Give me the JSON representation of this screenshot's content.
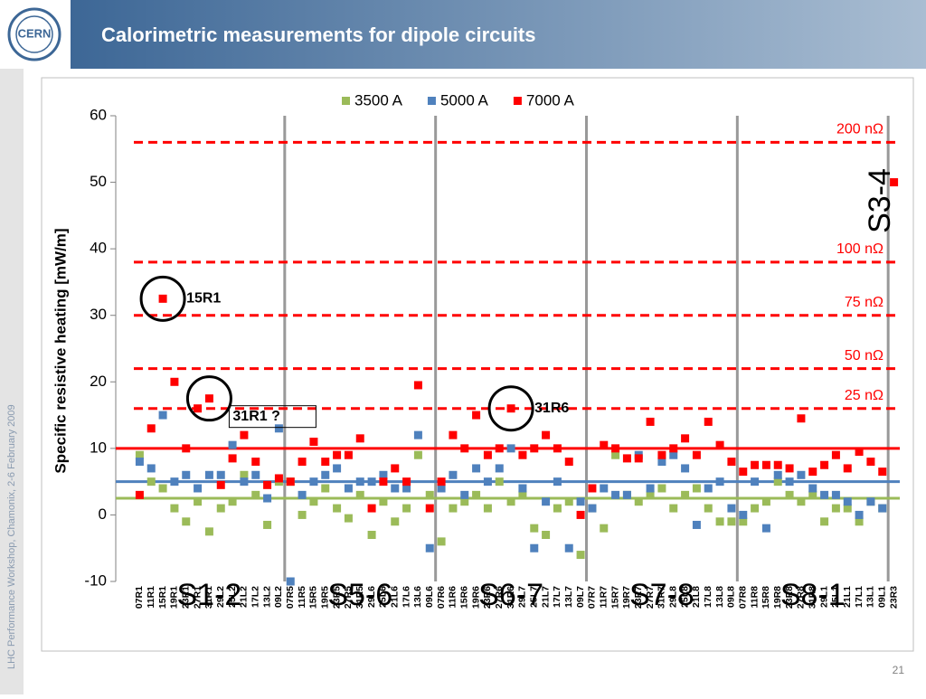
{
  "header": {
    "logo": "CERN",
    "title": "Calorimetric measurements for dipole circuits"
  },
  "sidebar": "LHC Performance Workshop, Chamonix, 2-6 February 2009",
  "page_number": "21",
  "chart_data": {
    "type": "scatter",
    "y_label": "Specific resistive heating [mW/m]",
    "ylim": [
      -10,
      60
    ],
    "yticks": [
      -10,
      0,
      10,
      20,
      30,
      40,
      50,
      60
    ],
    "categories": [
      "07R1",
      "11R1",
      "15R1",
      "19R1",
      "23R1",
      "27R1",
      "31R1",
      "29L2",
      "25L2",
      "21L2",
      "17L2",
      "13L2",
      "09L2",
      "07R5",
      "11R5",
      "15R5",
      "19R5",
      "23R5",
      "27R5",
      "31R5",
      "29L6",
      "25L6",
      "21L6",
      "17L6",
      "13L6",
      "09L6",
      "07R6",
      "11R6",
      "15R6",
      "19R6",
      "23R6",
      "27R6",
      "31R6",
      "29L7",
      "25L7",
      "21L7",
      "17L7",
      "13L7",
      "09L7",
      "07R7",
      "11R7",
      "15R7",
      "19R7",
      "23R7",
      "27R7",
      "31R7",
      "29L8",
      "25L8",
      "21L8",
      "17L8",
      "13L8",
      "09L8",
      "07R8",
      "11R8",
      "15R8",
      "19R8",
      "23R8",
      "27R8",
      "31R8",
      "29L1",
      "25L1",
      "21L1",
      "17L1",
      "13L1",
      "09L1",
      "23R3"
    ],
    "series": [
      {
        "name": "3500 A",
        "color": "#9bbb59",
        "values": [
          9,
          5,
          4,
          1,
          -1,
          2,
          -2.5,
          1,
          2,
          6,
          3,
          -1.5,
          5,
          5,
          0,
          2,
          4,
          1,
          -0.5,
          3,
          -3,
          2,
          -1,
          1,
          9,
          3,
          -4,
          1,
          2,
          3,
          1,
          5,
          2,
          3,
          -2,
          -3,
          1,
          2,
          -6,
          1,
          -2,
          9,
          3,
          2,
          3,
          4,
          1,
          3,
          4,
          1,
          -1,
          -1,
          -1,
          1,
          2,
          5,
          3,
          2,
          3,
          -1,
          1,
          1,
          -1,
          2,
          1,
          null
        ]
      },
      {
        "name": "5000 A",
        "color": "#4f81bd",
        "values": [
          8,
          7,
          15,
          5,
          6,
          4,
          6,
          6,
          10.5,
          5,
          6,
          2.5,
          13,
          -10,
          3,
          5,
          6,
          7,
          4,
          5,
          5,
          6,
          4,
          4,
          12,
          -5,
          4,
          6,
          3,
          7,
          5,
          7,
          10,
          4,
          -5,
          2,
          5,
          -5,
          2,
          1,
          4,
          3,
          3,
          9,
          4,
          8,
          9,
          7,
          -1.5,
          4,
          5,
          1,
          0,
          5,
          -2,
          6,
          5,
          6,
          4,
          3,
          3,
          2,
          0,
          2,
          1,
          null
        ]
      },
      {
        "name": "7000 A",
        "color": "#ff0000",
        "values": [
          3,
          13,
          32.5,
          20,
          10,
          16,
          17.5,
          4.5,
          8.5,
          12,
          8,
          4.5,
          5.5,
          5,
          8,
          11,
          8,
          9,
          9,
          11.5,
          1,
          5,
          7,
          5,
          19.5,
          1,
          5,
          12,
          10,
          15,
          9,
          10,
          16,
          9,
          10,
          12,
          10,
          8,
          0,
          4,
          10.5,
          10,
          8.5,
          8.5,
          14,
          9,
          10,
          11.5,
          9,
          14,
          10.5,
          8,
          6.5,
          7.5,
          7.5,
          7.5,
          7,
          14.5,
          6.5,
          7.5,
          9,
          7,
          9.5,
          8,
          6.5,
          50
        ]
      }
    ],
    "mean_lines": [
      {
        "color": "#ff0000",
        "value": 10
      },
      {
        "color": "#4f81bd",
        "value": 5
      },
      {
        "color": "#9bbb59",
        "value": 2.5
      }
    ],
    "reference_lines": [
      {
        "label": "200 nΩ",
        "value": 56
      },
      {
        "label": "100 nΩ",
        "value": 38
      },
      {
        "label": "75 nΩ",
        "value": 30
      },
      {
        "label": "50 nΩ",
        "value": 22
      },
      {
        "label": "25 nΩ",
        "value": 16
      }
    ],
    "sectors": [
      "S1-2",
      "S5-6",
      "S6-7",
      "S7-8",
      "S8-1"
    ],
    "last_sector": "S3-4",
    "annotations": [
      "15R1",
      "31R1 ?",
      "31R6"
    ]
  }
}
